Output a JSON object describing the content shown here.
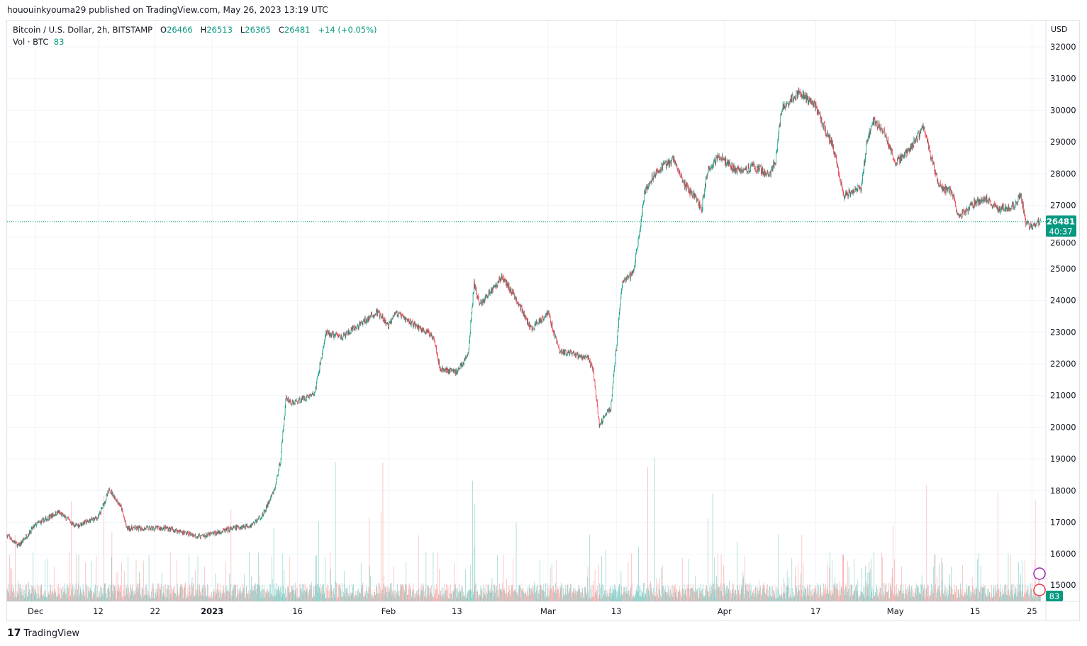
{
  "publisher_line": "hououinkyouma29 published on TradingView.com, May 26, 2023 13:19 UTC",
  "legend": {
    "symbol": "Bitcoin / U.S. Dollar, 2h, BITSTAMP",
    "o_label": "O",
    "o": "26466",
    "h_label": "H",
    "h": "26513",
    "l_label": "L",
    "l": "26365",
    "c_label": "C",
    "c": "26481",
    "change": "+14 (+0.05%)",
    "vol_label": "Vol · BTC",
    "vol": "83"
  },
  "currency": "USD",
  "last_price_badge": {
    "price": "26481",
    "countdown": "40:37"
  },
  "volume_badge": "83",
  "brand": "TradingView",
  "colors": {
    "up": "#089981",
    "down": "#f23645",
    "up_vol": "#80cbc4",
    "down_vol": "#f7a9a7",
    "grid": "#f0f3fa"
  },
  "chart_data": {
    "type": "candlestick",
    "interval": "2h",
    "y_ticks": [
      15000,
      16000,
      17000,
      18000,
      19000,
      20000,
      21000,
      22000,
      23000,
      24000,
      25000,
      26000,
      27000,
      28000,
      29000,
      30000,
      31000,
      32000
    ],
    "ylim": [
      14600,
      32500
    ],
    "x_ticks": [
      {
        "date": "2022-12-01",
        "label": "Dec"
      },
      {
        "date": "2022-12-12",
        "label": "12"
      },
      {
        "date": "2022-12-22",
        "label": "22"
      },
      {
        "date": "2023-01-01",
        "label": "2023"
      },
      {
        "date": "2023-01-16",
        "label": "16"
      },
      {
        "date": "2023-02-01",
        "label": "Feb"
      },
      {
        "date": "2023-02-13",
        "label": "13"
      },
      {
        "date": "2023-03-01",
        "label": "Mar"
      },
      {
        "date": "2023-03-13",
        "label": "13"
      },
      {
        "date": "2023-04-01",
        "label": "Apr"
      },
      {
        "date": "2023-04-17",
        "label": "17"
      },
      {
        "date": "2023-05-01",
        "label": "May"
      },
      {
        "date": "2023-05-15",
        "label": "15"
      },
      {
        "date": "2023-05-25",
        "label": "25"
      }
    ],
    "xlim": [
      "2022-11-26",
      "2023-05-30"
    ],
    "close_path": [
      [
        "2022-11-26",
        16590
      ],
      [
        "2022-11-28",
        16250
      ],
      [
        "2022-12-01",
        16920
      ],
      [
        "2022-12-05",
        17320
      ],
      [
        "2022-12-08",
        16880
      ],
      [
        "2022-12-12",
        17150
      ],
      [
        "2022-12-14",
        18040
      ],
      [
        "2022-12-16",
        17480
      ],
      [
        "2022-12-17",
        16810
      ],
      [
        "2022-12-20",
        16800
      ],
      [
        "2022-12-24",
        16820
      ],
      [
        "2022-12-30",
        16540
      ],
      [
        "2023-01-05",
        16820
      ],
      [
        "2023-01-08",
        16920
      ],
      [
        "2023-01-10",
        17250
      ],
      [
        "2023-01-12",
        18040
      ],
      [
        "2023-01-13",
        18930
      ],
      [
        "2023-01-14",
        20950
      ],
      [
        "2023-01-15",
        20750
      ],
      [
        "2023-01-19",
        21060
      ],
      [
        "2023-01-21",
        22960
      ],
      [
        "2023-01-24",
        22850
      ],
      [
        "2023-01-30",
        23630
      ],
      [
        "2023-02-01",
        23180
      ],
      [
        "2023-02-02",
        23630
      ],
      [
        "2023-02-06",
        23180
      ],
      [
        "2023-02-09",
        22850
      ],
      [
        "2023-02-10",
        21840
      ],
      [
        "2023-02-13",
        21750
      ],
      [
        "2023-02-15",
        22300
      ],
      [
        "2023-02-16",
        24530
      ],
      [
        "2023-02-17",
        23860
      ],
      [
        "2023-02-21",
        24750
      ],
      [
        "2023-02-24",
        23860
      ],
      [
        "2023-02-26",
        23080
      ],
      [
        "2023-03-01",
        23630
      ],
      [
        "2023-03-03",
        22400
      ],
      [
        "2023-03-08",
        22180
      ],
      [
        "2023-03-09",
        21740
      ],
      [
        "2023-03-10",
        20050
      ],
      [
        "2023-03-11",
        20390
      ],
      [
        "2023-03-12",
        20610
      ],
      [
        "2023-03-13",
        22510
      ],
      [
        "2023-03-14",
        24530
      ],
      [
        "2023-03-16",
        24860
      ],
      [
        "2023-03-17",
        26090
      ],
      [
        "2023-03-18",
        27440
      ],
      [
        "2023-03-20",
        28100
      ],
      [
        "2023-03-23",
        28430
      ],
      [
        "2023-03-25",
        27650
      ],
      [
        "2023-03-27",
        27200
      ],
      [
        "2023-03-28",
        26880
      ],
      [
        "2023-03-29",
        28100
      ],
      [
        "2023-03-31",
        28560
      ],
      [
        "2023-04-03",
        28100
      ],
      [
        "2023-04-06",
        28210
      ],
      [
        "2023-04-09",
        27990
      ],
      [
        "2023-04-10",
        28430
      ],
      [
        "2023-04-11",
        30010
      ],
      [
        "2023-04-14",
        30570
      ],
      [
        "2023-04-17",
        30120
      ],
      [
        "2023-04-19",
        29230
      ],
      [
        "2023-04-20",
        28900
      ],
      [
        "2023-04-21",
        28100
      ],
      [
        "2023-04-22",
        27320
      ],
      [
        "2023-04-25",
        27540
      ],
      [
        "2023-04-26",
        28990
      ],
      [
        "2023-04-27",
        29670
      ],
      [
        "2023-04-29",
        29340
      ],
      [
        "2023-05-01",
        28330
      ],
      [
        "2023-05-03",
        28660
      ],
      [
        "2023-05-06",
        29450
      ],
      [
        "2023-05-08",
        28000
      ],
      [
        "2023-05-09",
        27550
      ],
      [
        "2023-05-11",
        27440
      ],
      [
        "2023-05-12",
        26650
      ],
      [
        "2023-05-13",
        26760
      ],
      [
        "2023-05-15",
        27100
      ],
      [
        "2023-05-17",
        27200
      ],
      [
        "2023-05-19",
        26870
      ],
      [
        "2023-05-22",
        26980
      ],
      [
        "2023-05-23",
        27320
      ],
      [
        "2023-05-24",
        26430
      ],
      [
        "2023-05-25",
        26320
      ],
      [
        "2023-05-26",
        26481
      ]
    ]
  }
}
